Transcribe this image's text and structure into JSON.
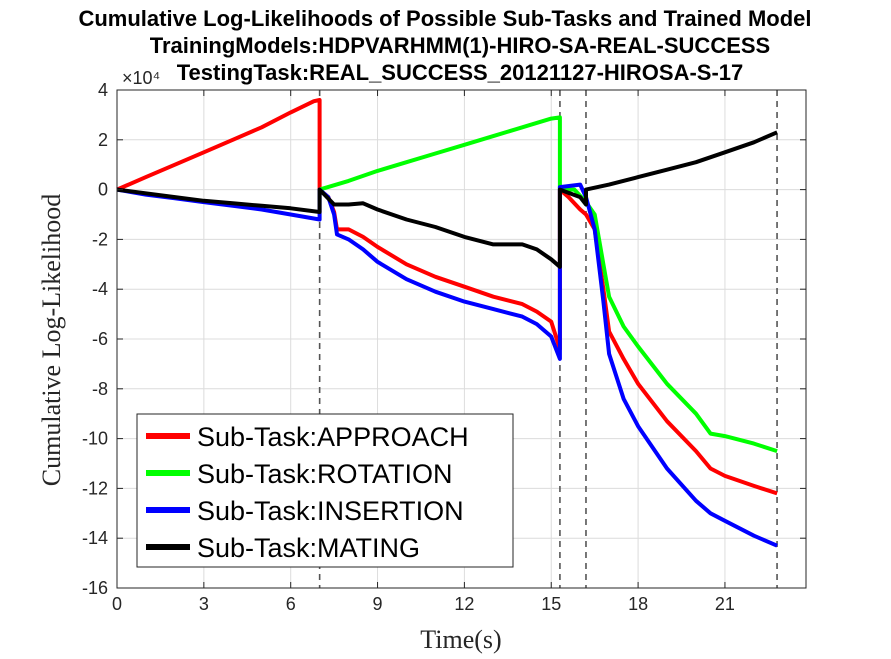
{
  "chart_data": {
    "type": "line",
    "title_lines": [
      "Cumulative Log-Likelihoods of Possible Sub-Tasks and Trained Model",
      "TrainingModels:HDPVARHMM(1)-HIRO-SA-REAL-SUCCESS",
      "TestingTask:REAL_SUCCESS_20121127-HIROSA-S-17"
    ],
    "xlabel": "Time(s)",
    "ylabel": "Cumulative Log-Likelihood",
    "y_exponent_label": "×10⁴",
    "xlim": [
      0,
      23.8
    ],
    "ylim": [
      -16,
      4
    ],
    "xticks": [
      0,
      3,
      6,
      9,
      12,
      15,
      18,
      21
    ],
    "yticks": [
      4,
      2,
      0,
      -2,
      -4,
      -6,
      -8,
      -10,
      -12,
      -14,
      -16
    ],
    "grid": true,
    "legend_position": "bottom-left",
    "vertical_markers": [
      7.0,
      15.3,
      16.2,
      22.8
    ],
    "series": [
      {
        "name": "Sub-Task:APPROACH",
        "color": "#ff0000",
        "points": [
          [
            0,
            0
          ],
          [
            1,
            0.5
          ],
          [
            2,
            1.0
          ],
          [
            3,
            1.5
          ],
          [
            4,
            2.0
          ],
          [
            5,
            2.5
          ],
          [
            6,
            3.1
          ],
          [
            6.8,
            3.55
          ],
          [
            7.0,
            3.6
          ],
          [
            7.0,
            0
          ],
          [
            7.3,
            -0.3
          ],
          [
            7.5,
            -0.9
          ],
          [
            7.6,
            -1.6
          ],
          [
            8,
            -1.6
          ],
          [
            8.5,
            -1.9
          ],
          [
            9,
            -2.3
          ],
          [
            10,
            -3.0
          ],
          [
            11,
            -3.5
          ],
          [
            12,
            -3.9
          ],
          [
            13,
            -4.3
          ],
          [
            14,
            -4.6
          ],
          [
            14.5,
            -4.9
          ],
          [
            15,
            -5.3
          ],
          [
            15.3,
            -6.4
          ],
          [
            15.3,
            0
          ],
          [
            15.6,
            -0.3
          ],
          [
            16.0,
            -0.8
          ],
          [
            16.2,
            -1.0
          ],
          [
            16.5,
            -1.6
          ],
          [
            16.8,
            -4.0
          ],
          [
            17.0,
            -5.7
          ],
          [
            17.5,
            -6.8
          ],
          [
            18,
            -7.8
          ],
          [
            19,
            -9.3
          ],
          [
            20,
            -10.5
          ],
          [
            20.5,
            -11.2
          ],
          [
            21,
            -11.5
          ],
          [
            22,
            -11.9
          ],
          [
            22.8,
            -12.2
          ]
        ]
      },
      {
        "name": "Sub-Task:ROTATION",
        "color": "#00ff00",
        "points": [
          [
            7.0,
            0
          ],
          [
            8,
            0.35
          ],
          [
            9,
            0.75
          ],
          [
            10,
            1.1
          ],
          [
            11,
            1.45
          ],
          [
            12,
            1.8
          ],
          [
            13,
            2.15
          ],
          [
            14,
            2.5
          ],
          [
            15,
            2.85
          ],
          [
            15.3,
            2.9
          ],
          [
            15.3,
            0
          ],
          [
            15.8,
            0
          ],
          [
            16.2,
            -0.5
          ],
          [
            16.5,
            -1.0
          ],
          [
            16.8,
            -3.0
          ],
          [
            17.0,
            -4.3
          ],
          [
            17.5,
            -5.5
          ],
          [
            18,
            -6.3
          ],
          [
            19,
            -7.8
          ],
          [
            20,
            -9.0
          ],
          [
            20.5,
            -9.8
          ],
          [
            21,
            -9.9
          ],
          [
            22,
            -10.2
          ],
          [
            22.8,
            -10.5
          ]
        ]
      },
      {
        "name": "Sub-Task:INSERTION",
        "color": "#0000ff",
        "points": [
          [
            0,
            0
          ],
          [
            1,
            -0.2
          ],
          [
            2,
            -0.35
          ],
          [
            3,
            -0.5
          ],
          [
            4,
            -0.65
          ],
          [
            5,
            -0.8
          ],
          [
            6,
            -1.0
          ],
          [
            7.0,
            -1.2
          ],
          [
            7.0,
            0
          ],
          [
            7.3,
            -0.3
          ],
          [
            7.5,
            -1.0
          ],
          [
            7.6,
            -1.8
          ],
          [
            8,
            -2.0
          ],
          [
            8.5,
            -2.4
          ],
          [
            9,
            -2.9
          ],
          [
            10,
            -3.6
          ],
          [
            11,
            -4.1
          ],
          [
            12,
            -4.5
          ],
          [
            13,
            -4.8
          ],
          [
            14,
            -5.1
          ],
          [
            14.5,
            -5.4
          ],
          [
            15,
            -5.9
          ],
          [
            15.3,
            -6.8
          ],
          [
            15.3,
            0.1
          ],
          [
            16,
            0.2
          ],
          [
            16.2,
            -0.3
          ],
          [
            16.5,
            -1.6
          ],
          [
            16.8,
            -4.5
          ],
          [
            17.0,
            -6.6
          ],
          [
            17.5,
            -8.4
          ],
          [
            18,
            -9.5
          ],
          [
            19,
            -11.2
          ],
          [
            20,
            -12.5
          ],
          [
            20.5,
            -13.0
          ],
          [
            21,
            -13.3
          ],
          [
            22,
            -13.9
          ],
          [
            22.8,
            -14.3
          ]
        ]
      },
      {
        "name": "Sub-Task:MATING",
        "color": "#000000",
        "points": [
          [
            0,
            0
          ],
          [
            1,
            -0.15
          ],
          [
            2,
            -0.3
          ],
          [
            3,
            -0.45
          ],
          [
            4,
            -0.55
          ],
          [
            5,
            -0.65
          ],
          [
            6,
            -0.75
          ],
          [
            7.0,
            -0.9
          ],
          [
            7.0,
            0
          ],
          [
            7.5,
            -0.6
          ],
          [
            8,
            -0.6
          ],
          [
            8.5,
            -0.55
          ],
          [
            9,
            -0.8
          ],
          [
            10,
            -1.2
          ],
          [
            11,
            -1.5
          ],
          [
            12,
            -1.9
          ],
          [
            13,
            -2.2
          ],
          [
            14,
            -2.2
          ],
          [
            14.5,
            -2.4
          ],
          [
            15,
            -2.8
          ],
          [
            15.3,
            -3.1
          ],
          [
            15.3,
            0
          ],
          [
            16,
            -0.3
          ],
          [
            16.2,
            -0.6
          ],
          [
            16.2,
            0
          ],
          [
            17,
            0.2
          ],
          [
            18,
            0.5
          ],
          [
            19,
            0.8
          ],
          [
            20,
            1.1
          ],
          [
            21,
            1.5
          ],
          [
            22,
            1.9
          ],
          [
            22.8,
            2.3
          ]
        ]
      }
    ]
  }
}
